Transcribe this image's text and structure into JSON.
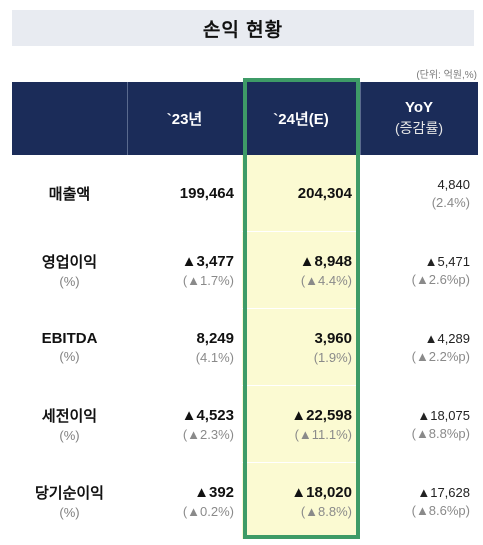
{
  "title": "손익 현황",
  "unit_note": "(단위: 억원,%)",
  "headers": {
    "col1": "`23년",
    "col2": "`24년(E)",
    "col3_main": "YoY",
    "col3_sub": "(증감률)"
  },
  "rows": [
    {
      "label": "매출액",
      "sub": "",
      "v23": "199,464",
      "p23": "",
      "v24": "204,304",
      "p24": "",
      "yoy": "4,840",
      "yoy_p": "(2.4%)"
    },
    {
      "label": "영업이익",
      "sub": "(%)",
      "v23": "▲3,477",
      "p23": "(▲1.7%)",
      "v24": "▲8,948",
      "p24": "(▲4.4%)",
      "yoy": "▲5,471",
      "yoy_p": "(▲2.6%p)"
    },
    {
      "label": "EBITDA",
      "sub": "(%)",
      "v23": "8,249",
      "p23": "(4.1%)",
      "v24": "3,960",
      "p24": "(1.9%)",
      "yoy": "▲4,289",
      "yoy_p": "(▲2.2%p)"
    },
    {
      "label": "세전이익",
      "sub": "(%)",
      "v23": "▲4,523",
      "p23": "(▲2.3%)",
      "v24": "▲22,598",
      "p24": "(▲11.1%)",
      "yoy": "▲18,075",
      "yoy_p": "(▲8.8%p)"
    },
    {
      "label": "당기순이익",
      "sub": "(%)",
      "v23": "▲392",
      "p23": "(▲0.2%)",
      "v24": "▲18,020",
      "p24": "(▲8.8%)",
      "yoy": "▲17,628",
      "yoy_p": "(▲8.6%p)"
    }
  ],
  "colors": {
    "header_bg": "#1b2c59",
    "highlight_border": "#3e9b67",
    "highlight_fill": "#fbfad2",
    "title_bg": "#e8ebf1"
  }
}
